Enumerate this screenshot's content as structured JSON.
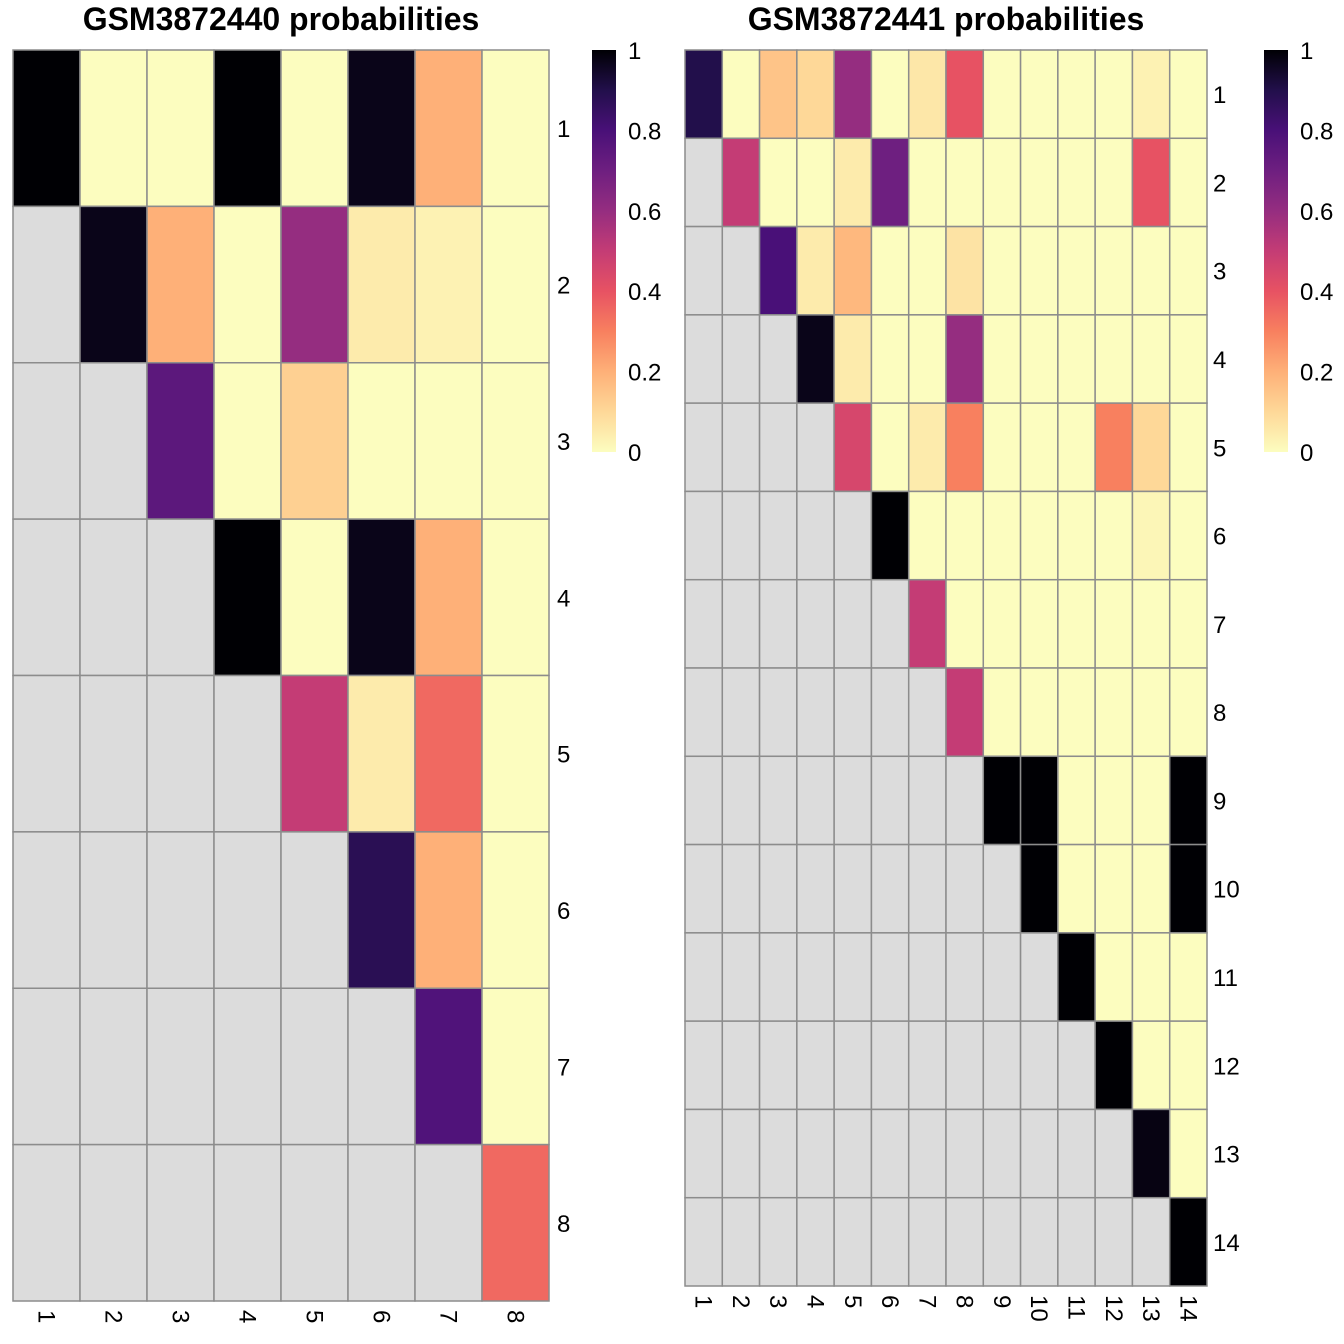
{
  "chart_data": [
    {
      "type": "heatmap",
      "title": "GSM3872440 probabilities",
      "row_labels": [
        "1",
        "2",
        "3",
        "4",
        "5",
        "6",
        "7",
        "8"
      ],
      "col_labels": [
        "1",
        "2",
        "3",
        "4",
        "5",
        "6",
        "7",
        "8"
      ],
      "na_color": "#dcdcdc",
      "colorscale": "magma (reversed)",
      "colorbar": {
        "min": 0,
        "max": 1,
        "ticks": [
          "0",
          "0.2",
          "0.4",
          "0.6",
          "0.8",
          "1"
        ]
      },
      "values": [
        [
          1.0,
          0.0,
          0.0,
          1.0,
          0.0,
          0.97,
          0.2,
          0.0
        ],
        [
          null,
          0.97,
          0.2,
          0.0,
          0.6,
          0.05,
          0.03,
          0.0
        ],
        [
          null,
          null,
          0.75,
          0.0,
          0.12,
          0.0,
          0.0,
          0.0
        ],
        [
          null,
          null,
          null,
          1.0,
          0.0,
          0.97,
          0.2,
          0.0
        ],
        [
          null,
          null,
          null,
          null,
          0.5,
          0.05,
          0.35,
          0.0
        ],
        [
          null,
          null,
          null,
          null,
          null,
          0.88,
          0.2,
          0.0
        ],
        [
          null,
          null,
          null,
          null,
          null,
          null,
          0.78,
          0.0
        ],
        [
          null,
          null,
          null,
          null,
          null,
          null,
          null,
          0.35
        ]
      ]
    },
    {
      "type": "heatmap",
      "title": "GSM3872441 probabilities",
      "row_labels": [
        "1",
        "2",
        "3",
        "4",
        "5",
        "6",
        "7",
        "8",
        "9",
        "10",
        "11",
        "12",
        "13",
        "14"
      ],
      "col_labels": [
        "1",
        "2",
        "3",
        "4",
        "5",
        "6",
        "7",
        "8",
        "9",
        "10",
        "11",
        "12",
        "13",
        "14"
      ],
      "na_color": "#dcdcdc",
      "colorscale": "magma (reversed)",
      "colorbar": {
        "min": 0,
        "max": 1,
        "ticks": [
          "0",
          "0.2",
          "0.4",
          "0.6",
          "0.8",
          "1"
        ]
      },
      "values": [
        [
          0.9,
          0.0,
          0.15,
          0.1,
          0.6,
          0.0,
          0.06,
          0.4,
          0.0,
          0.0,
          0.0,
          0.0,
          0.03,
          0.0
        ],
        [
          null,
          0.5,
          0.0,
          0.0,
          0.05,
          0.7,
          0.0,
          0.0,
          0.0,
          0.0,
          0.0,
          0.0,
          0.4,
          0.0
        ],
        [
          null,
          null,
          0.8,
          0.05,
          0.18,
          0.0,
          0.0,
          0.07,
          0.0,
          0.0,
          0.0,
          0.0,
          0.0,
          0.0
        ],
        [
          null,
          null,
          null,
          0.97,
          0.05,
          0.0,
          0.0,
          0.6,
          0.0,
          0.0,
          0.0,
          0.0,
          0.0,
          0.0
        ],
        [
          null,
          null,
          null,
          null,
          0.45,
          0.0,
          0.05,
          0.3,
          0.0,
          0.0,
          0.0,
          0.3,
          0.1,
          0.0
        ],
        [
          null,
          null,
          null,
          null,
          null,
          1.0,
          0.0,
          0.0,
          0.0,
          0.0,
          0.0,
          0.0,
          0.02,
          0.0
        ],
        [
          null,
          null,
          null,
          null,
          null,
          null,
          0.5,
          0.0,
          0.0,
          0.0,
          0.0,
          0.0,
          0.0,
          0.0
        ],
        [
          null,
          null,
          null,
          null,
          null,
          null,
          null,
          0.5,
          0.0,
          0.0,
          0.0,
          0.0,
          0.0,
          0.0
        ],
        [
          null,
          null,
          null,
          null,
          null,
          null,
          null,
          null,
          1.0,
          1.0,
          0.0,
          0.0,
          0.0,
          1.0
        ],
        [
          null,
          null,
          null,
          null,
          null,
          null,
          null,
          null,
          null,
          1.0,
          0.0,
          0.0,
          0.0,
          1.0
        ],
        [
          null,
          null,
          null,
          null,
          null,
          null,
          null,
          null,
          null,
          null,
          1.0,
          0.0,
          0.0,
          0.0
        ],
        [
          null,
          null,
          null,
          null,
          null,
          null,
          null,
          null,
          null,
          null,
          null,
          1.0,
          0.0,
          0.0
        ],
        [
          null,
          null,
          null,
          null,
          null,
          null,
          null,
          null,
          null,
          null,
          null,
          null,
          0.98,
          0.0
        ],
        [
          null,
          null,
          null,
          null,
          null,
          null,
          null,
          null,
          null,
          null,
          null,
          null,
          null,
          1.0
        ]
      ]
    }
  ]
}
